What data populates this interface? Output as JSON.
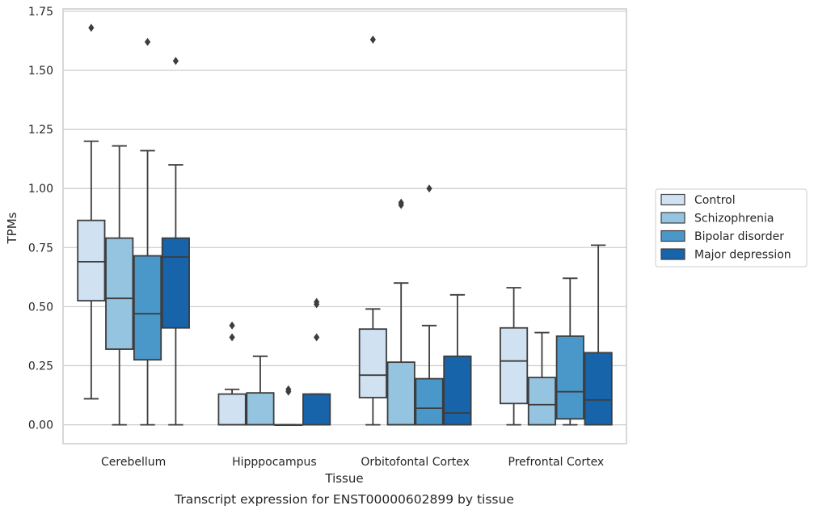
{
  "chart_data": {
    "type": "box",
    "caption": "Transcript expression for ENST00000602899 by tissue",
    "xlabel": "Tissue",
    "ylabel": "TPMs",
    "ylim": [
      -0.08,
      1.76
    ],
    "yticks": [
      "0.00",
      "0.25",
      "0.50",
      "0.75",
      "1.00",
      "1.25",
      "1.50",
      "1.75"
    ],
    "grid": "horizontal",
    "legend_position": "right-outside",
    "categories": [
      "Cerebellum",
      "Hipppocampus",
      "Orbitofontal Cortex",
      "Prefrontal Cortex"
    ],
    "series": [
      {
        "name": "Control",
        "color": "#d0e1f2",
        "boxes": [
          {
            "whisker_low": 0.11,
            "q1": 0.525,
            "median": 0.69,
            "q3": 0.865,
            "whisker_high": 1.2,
            "outliers": [
              1.68
            ]
          },
          {
            "whisker_low": 0.0,
            "q1": 0.0,
            "median": 0.0,
            "q3": 0.13,
            "whisker_high": 0.15,
            "outliers": [
              0.37,
              0.42
            ]
          },
          {
            "whisker_low": 0.0,
            "q1": 0.115,
            "median": 0.21,
            "q3": 0.405,
            "whisker_high": 0.49,
            "outliers": [
              1.63
            ]
          },
          {
            "whisker_low": 0.0,
            "q1": 0.09,
            "median": 0.27,
            "q3": 0.41,
            "whisker_high": 0.58,
            "outliers": []
          }
        ]
      },
      {
        "name": "Schizophrenia",
        "color": "#94c4df",
        "boxes": [
          {
            "whisker_low": 0.0,
            "q1": 0.32,
            "median": 0.535,
            "q3": 0.79,
            "whisker_high": 1.18,
            "outliers": []
          },
          {
            "whisker_low": 0.0,
            "q1": 0.0,
            "median": 0.0,
            "q3": 0.135,
            "whisker_high": 0.29,
            "outliers": []
          },
          {
            "whisker_low": 0.0,
            "q1": 0.0,
            "median": 0.0,
            "q3": 0.265,
            "whisker_high": 0.6,
            "outliers": [
              0.93,
              0.94
            ]
          },
          {
            "whisker_low": 0.0,
            "q1": 0.0,
            "median": 0.085,
            "q3": 0.2,
            "whisker_high": 0.39,
            "outliers": []
          }
        ]
      },
      {
        "name": "Bipolar disorder",
        "color": "#4a98c9",
        "boxes": [
          {
            "whisker_low": 0.0,
            "q1": 0.275,
            "median": 0.47,
            "q3": 0.715,
            "whisker_high": 1.16,
            "outliers": [
              1.62
            ]
          },
          {
            "whisker_low": 0.0,
            "q1": 0.0,
            "median": 0.0,
            "q3": 0.0,
            "whisker_high": 0.0,
            "outliers": [
              0.14,
              0.15
            ]
          },
          {
            "whisker_low": 0.0,
            "q1": 0.0,
            "median": 0.07,
            "q3": 0.195,
            "whisker_high": 0.42,
            "outliers": [
              1.0
            ]
          },
          {
            "whisker_low": 0.0,
            "q1": 0.025,
            "median": 0.14,
            "q3": 0.375,
            "whisker_high": 0.62,
            "outliers": []
          }
        ]
      },
      {
        "name": "Major depression",
        "color": "#1764ab",
        "boxes": [
          {
            "whisker_low": 0.0,
            "q1": 0.41,
            "median": 0.71,
            "q3": 0.79,
            "whisker_high": 1.1,
            "outliers": [
              1.54
            ]
          },
          {
            "whisker_low": 0.0,
            "q1": 0.0,
            "median": 0.0,
            "q3": 0.13,
            "whisker_high": 0.13,
            "outliers": [
              0.37,
              0.51,
              0.52
            ]
          },
          {
            "whisker_low": 0.0,
            "q1": 0.0,
            "median": 0.05,
            "q3": 0.29,
            "whisker_high": 0.55,
            "outliers": []
          },
          {
            "whisker_low": 0.0,
            "q1": 0.0,
            "median": 0.105,
            "q3": 0.305,
            "whisker_high": 0.76,
            "outliers": []
          }
        ]
      }
    ]
  }
}
